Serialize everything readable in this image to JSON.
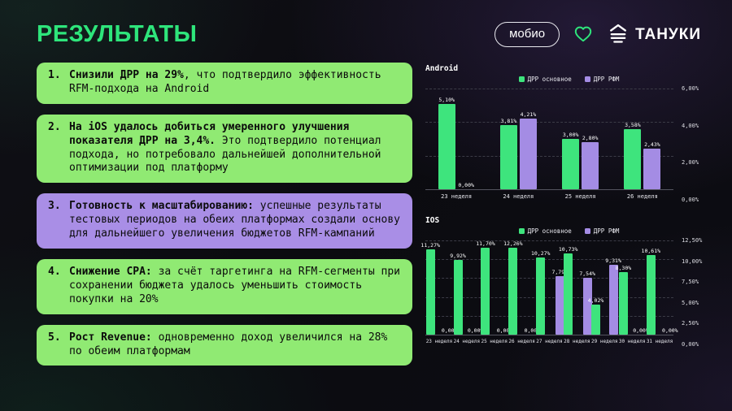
{
  "colors": {
    "accent_green": "#2ee57b",
    "card_green": "#90ea73",
    "card_purple": "#a98ee6",
    "bar_green": "#3ee47d",
    "bar_purple": "#a48ce4"
  },
  "header": {
    "title": "РЕЗУЛЬТАТЫ",
    "mobio_label": "мобио",
    "tanuki_label": "ТАНУКИ"
  },
  "cards": [
    {
      "number": "1.",
      "bold": "Снизили ДРР на 29%",
      "rest": ", что подтвердило эффективность RFM-подхода на Android",
      "color": "green"
    },
    {
      "number": "2.",
      "bold": "На iOS удалось добиться умеренного улучшения показателя ДРР на 3,4%.",
      "rest": " Это подтвердило потенциал подхода, но потребовало дальнейшей дополнительной оптимизации под платформу",
      "color": "green"
    },
    {
      "number": "3.",
      "bold": "Готовность к масштабированию:",
      "rest": " успешные результаты тестовых периодов на обеих платформах создали основу для дальнейшего увеличения бюджетов RFM-кампаний",
      "color": "purple"
    },
    {
      "number": "4.",
      "bold": "Снижение CPA:",
      "rest": " за счёт таргетинга на RFM-сегменты при сохранении бюджета удалось уменьшить стоимость покупки на 20%",
      "color": "green"
    },
    {
      "number": "5.",
      "bold": "Рост Revenue:",
      "rest": " одновременно доход увеличился на 28% по обеим платформам",
      "color": "green"
    }
  ],
  "chart_data": [
    {
      "type": "bar",
      "title": "Android",
      "categories": [
        "23 неделя",
        "24 неделя",
        "25 неделя",
        "26 неделя"
      ],
      "series": [
        {
          "name": "ДРР основное",
          "color": "#3ee47d",
          "values": [
            5.1,
            3.81,
            3.0,
            3.58
          ],
          "labels": [
            "5,10%",
            "3,81%",
            "3,00%",
            "3,58%"
          ]
        },
        {
          "name": "ДРР РФМ",
          "color": "#a48ce4",
          "values": [
            0.0,
            4.21,
            2.8,
            2.43
          ],
          "labels": [
            "0,00%",
            "4,21%",
            "2,80%",
            "2,43%"
          ]
        }
      ],
      "ylim": [
        0,
        6
      ],
      "yticks": [
        "6,00%",
        "4,00%",
        "2,00%",
        "0,00%"
      ],
      "legend_position": "top",
      "grid": true
    },
    {
      "type": "bar",
      "title": "IOS",
      "categories": [
        "23 неделя",
        "24 неделя",
        "25 неделя",
        "26 неделя",
        "27 неделя",
        "28 неделя",
        "29 неделя",
        "30 неделя",
        "31 неделя"
      ],
      "series": [
        {
          "name": "ДРР основное",
          "color": "#3ee47d",
          "values": [
            11.27,
            9.92,
            11.7,
            12.26,
            10.27,
            10.73,
            4.02,
            8.3,
            10.61
          ],
          "labels": [
            "11,27%",
            "9,92%",
            "11,70%",
            "12,26%",
            "10,27%",
            "10,73%",
            "4,02%",
            "8,30%",
            "10,61%"
          ]
        },
        {
          "name": "ДРР РФМ",
          "color": "#a48ce4",
          "values": [
            0.0,
            0.0,
            0.0,
            0.0,
            7.79,
            7.54,
            9.31,
            0.0,
            0.0
          ],
          "labels": [
            "0,00%",
            "0,00%",
            "0,00%",
            "0,00%",
            "7,79%",
            "7,54%",
            "9,31%",
            "0,00%",
            "0,00%"
          ]
        }
      ],
      "ylim": [
        0,
        12.5
      ],
      "yticks": [
        "12,50%",
        "10,00%",
        "7,50%",
        "5,00%",
        "2,50%",
        "0,00%"
      ],
      "legend_position": "top",
      "grid": true
    }
  ]
}
